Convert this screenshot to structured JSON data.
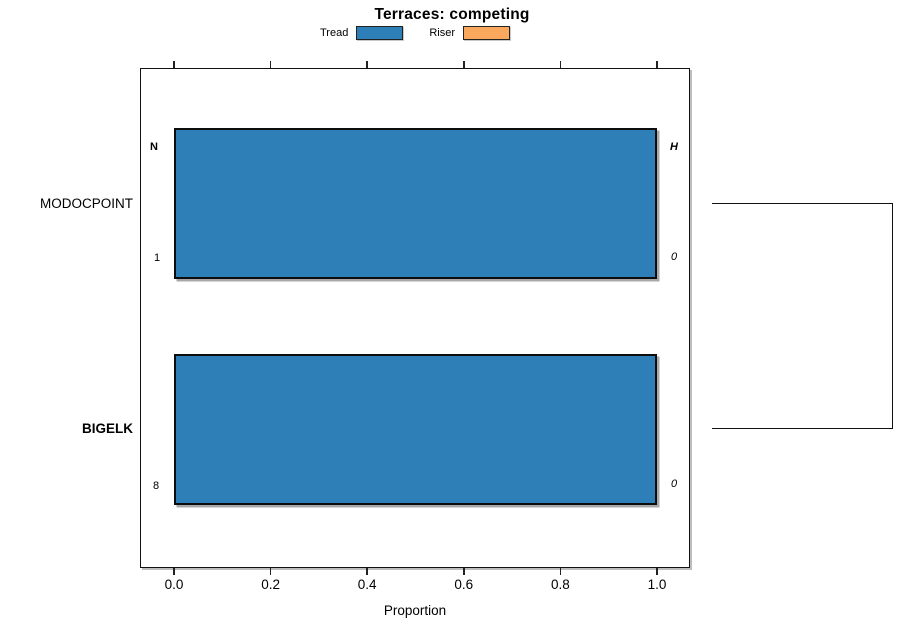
{
  "title": "Terraces: competing",
  "xlabel": "Proportion",
  "legend": {
    "items": [
      {
        "label": "Tread",
        "color": "#2e7fb8"
      },
      {
        "label": "Riser",
        "color": "#f9a85e"
      }
    ]
  },
  "axis": {
    "tick_labels": [
      "0.0",
      "0.2",
      "0.4",
      "0.6",
      "0.8",
      "1.0"
    ]
  },
  "rows": [
    {
      "category": "MODOCPOINT",
      "top_left_label": "N",
      "top_right_label": "H",
      "bottom_left_label": "1",
      "bottom_right_label": "0"
    },
    {
      "category": "BIGELK",
      "bottom_left_label": "8",
      "bottom_right_label": "0"
    }
  ],
  "chart_data": {
    "type": "bar",
    "orientation": "horizontal",
    "title": "Terraces: competing",
    "xlabel": "Proportion",
    "ylabel": "",
    "xlim": [
      0,
      1
    ],
    "x_ticks": [
      0.0,
      0.2,
      0.4,
      0.6,
      0.8,
      1.0
    ],
    "grid": false,
    "legend_position": "top-center",
    "categories": [
      "MODOCPOINT",
      "BIGELK"
    ],
    "series": [
      {
        "name": "Tread",
        "color": "#2e7fb8",
        "values": [
          1.0,
          1.0
        ]
      },
      {
        "name": "Riser",
        "color": "#f9a85e",
        "values": [
          0.0,
          0.0
        ]
      }
    ],
    "annotations": [
      {
        "row": "MODOCPOINT",
        "position": "top-left-of-bar",
        "text": "N",
        "style": "bold"
      },
      {
        "row": "MODOCPOINT",
        "position": "top-right-of-bar",
        "text": "H",
        "style": "bold-italic"
      },
      {
        "row": "MODOCPOINT",
        "position": "bottom-left-of-bar",
        "text": "1",
        "style": "plain"
      },
      {
        "row": "MODOCPOINT",
        "position": "bottom-right-of-bar",
        "text": "0",
        "style": "italic"
      },
      {
        "row": "BIGELK",
        "position": "bottom-left-of-bar",
        "text": "8",
        "style": "plain"
      },
      {
        "row": "BIGELK",
        "position": "bottom-right-of-bar",
        "text": "0",
        "style": "italic"
      }
    ],
    "right_bracket_connects": [
      "MODOCPOINT",
      "BIGELK"
    ]
  }
}
